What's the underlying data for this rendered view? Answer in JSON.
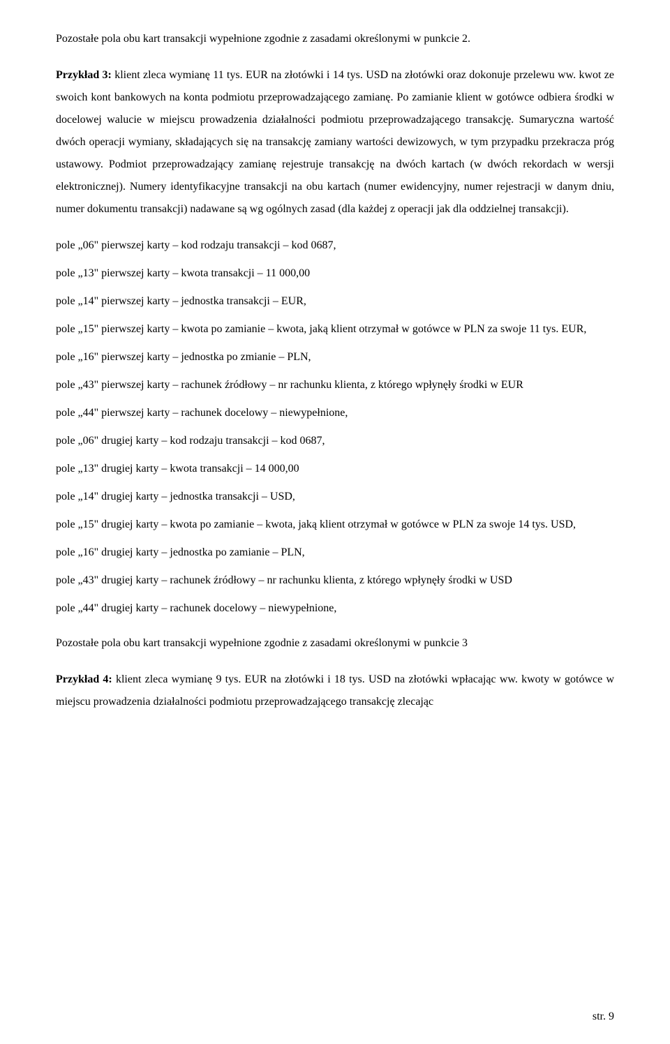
{
  "para1": "Pozostałe pola obu kart transakcji wypełnione zgodnie z zasadami określonymi w punkcie 2.",
  "para2_part1_bold": "Przykład 3:",
  "para2_part2": " klient zleca wymianę 11 tys. EUR na złotówki i 14 tys. USD na złotówki oraz dokonuje przelewu ww. kwot ze swoich kont bankowych na konta podmiotu przeprowadzającego zamianę. Po zamianie klient w gotówce odbiera środki w docelowej walucie w miejscu prowadzenia działalności podmiotu przeprowadzającego transakcję. Sumaryczna wartość dwóch operacji wymiany, składających się na transakcję zamiany wartości dewizowych, w tym przypadku przekracza próg ustawowy. Podmiot przeprowadzający zamianę rejestruje transakcję na dwóch kartach (w dwóch rekordach w wersji elektronicznej). Numery identyfikacyjne transakcji na obu kartach (numer ewidencyjny, numer rejestracji w danym dniu, numer dokumentu transakcji) nadawane są wg ogólnych zasad (dla każdej z operacji jak dla oddzielnej transakcji).",
  "fields": [
    "pole „06\" pierwszej karty – kod rodzaju transakcji – kod 0687,",
    "pole „13\" pierwszej karty – kwota transakcji – 11 000,00",
    "pole „14\" pierwszej karty – jednostka transakcji – EUR,",
    "pole „15\" pierwszej karty – kwota po zamianie – kwota, jaką klient otrzymał w gotówce w PLN za swoje 11 tys. EUR,",
    "pole „16\" pierwszej karty – jednostka po zmianie – PLN,",
    "pole „43\" pierwszej karty – rachunek  źródłowy – nr rachunku klienta, z którego wpłynęły środki w EUR",
    "pole „44\" pierwszej karty – rachunek docelowy – niewypełnione,",
    "pole „06\" drugiej karty – kod rodzaju transakcji – kod 0687,",
    "pole „13\" drugiej karty – kwota transakcji – 14 000,00",
    "pole „14\" drugiej karty – jednostka transakcji – USD,",
    "pole „15\" drugiej karty – kwota po zamianie – kwota, jaką klient otrzymał w gotówce w PLN za swoje 14 tys. USD,",
    "pole „16\" drugiej karty – jednostka po zamianie – PLN,",
    "pole „43\" drugiej karty – rachunek  źródłowy – nr rachunku klienta, z którego wpłynęły środki w USD",
    "pole „44\" drugiej karty – rachunek docelowy – niewypełnione,"
  ],
  "para3": "Pozostałe pola obu kart transakcji wypełnione zgodnie z zasadami określonymi w punkcie 3",
  "para4_part1_bold": "Przykład 4:",
  "para4_part2": " klient zleca wymianę 9 tys. EUR na złotówki i 18 tys. USD na złotówki wpłacając ww. kwoty w gotówce w miejscu prowadzenia działalności podmiotu przeprowadzającego transakcję zlecając",
  "page_number": "str. 9"
}
